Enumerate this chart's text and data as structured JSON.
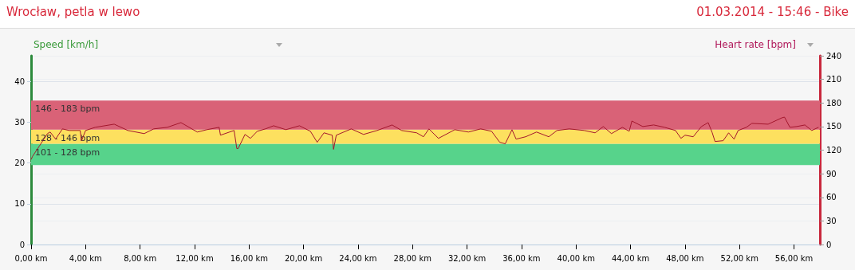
{
  "chart_data": {
    "type": "line",
    "title": "Wrocław, petla w lewo",
    "subtitle": "01.03.2014 - 15:46 - Bike",
    "ylabel": "Speed [km/h]",
    "y2label": "Heart rate [bpm]",
    "xlim": [
      0,
      57.9
    ],
    "xticks": [
      {
        "value": 0,
        "label": "0,00 km"
      },
      {
        "value": 4,
        "label": "4,00 km"
      },
      {
        "value": 8,
        "label": "8,00 km"
      },
      {
        "value": 12,
        "label": "12,00 km"
      },
      {
        "value": 16,
        "label": "16,00 km"
      },
      {
        "value": 20,
        "label": "20,00 km"
      },
      {
        "value": 24,
        "label": "24,00 km"
      },
      {
        "value": 28,
        "label": "28,00 km"
      },
      {
        "value": 32,
        "label": "32,00 km"
      },
      {
        "value": 36,
        "label": "36,00 km"
      },
      {
        "value": 40,
        "label": "40,00 km"
      },
      {
        "value": 44,
        "label": "44,00 km"
      },
      {
        "value": 48,
        "label": "48,00 km"
      },
      {
        "value": 52,
        "label": "52,00 km"
      },
      {
        "value": 56,
        "label": "56,00 km"
      }
    ],
    "ylim": [
      0,
      46.3
    ],
    "yticks": [
      0,
      10,
      20,
      30,
      40
    ],
    "y2lim": [
      0,
      240
    ],
    "y2ticks": [
      0,
      30,
      60,
      90,
      120,
      150,
      180,
      210,
      240
    ],
    "grid": "y",
    "marker": "none",
    "bands": [
      {
        "axis": "y2",
        "from": 101,
        "to": 128,
        "label": "101 - 128 bpm",
        "color": "#57d38b"
      },
      {
        "axis": "y2",
        "from": 128,
        "to": 146,
        "label": "128 - 146 bpm",
        "color": "#fde05f"
      },
      {
        "axis": "y2",
        "from": 146,
        "to": 183,
        "label": "146 - 183 bpm",
        "color": "#d96277"
      }
    ],
    "series": [
      {
        "color": "#a3172d",
        "axis": "y2",
        "x": [
          0,
          0.1,
          0.6,
          1.2,
          1.4,
          1.8,
          2.3,
          2.8,
          3.6,
          3.7,
          4.0,
          4.7,
          6.1,
          7.1,
          8.3,
          9.0,
          10.0,
          11.0,
          12.2,
          12.9,
          13.8,
          13.9,
          14.9,
          15.1,
          15.2,
          15.7,
          16.1,
          16.6,
          17.2,
          17.8,
          18.7,
          19.7,
          20.5,
          21.0,
          21.5,
          22.1,
          22.2,
          22.4,
          23.5,
          24.4,
          25.4,
          26.5,
          27.2,
          28.3,
          28.8,
          29.2,
          29.9,
          31.1,
          32.1,
          33.0,
          33.8,
          34.4,
          34.8,
          35.3,
          35.6,
          36.3,
          37.1,
          38.0,
          38.6,
          39.5,
          40.6,
          41.4,
          42.0,
          42.6,
          43.4,
          43.9,
          44.1,
          44.9,
          45.7,
          46.5,
          47.3,
          47.7,
          48.0,
          48.6,
          49.2,
          49.7,
          50.0,
          50.2,
          50.8,
          51.2,
          51.6,
          51.9,
          52.5,
          52.9,
          54.1,
          55.1,
          55.3,
          55.7,
          56.2,
          56.8,
          57.3,
          57.8
        ],
        "values": [
          108,
          112,
          125,
          141,
          143,
          134,
          147,
          145,
          145,
          132,
          145,
          149,
          153,
          145,
          141,
          147,
          149,
          155,
          143,
          146,
          149,
          139,
          145,
          122,
          122,
          140,
          135,
          144,
          147,
          151,
          146,
          151,
          144,
          130,
          142,
          139,
          121,
          139,
          147,
          140,
          145,
          152,
          145,
          142,
          137,
          147,
          135,
          146,
          143,
          147,
          144,
          130,
          128,
          146,
          134,
          137,
          143,
          137,
          145,
          147,
          145,
          142,
          150,
          141,
          149,
          144,
          157,
          150,
          152,
          149,
          145,
          135,
          139,
          137,
          150,
          155,
          142,
          131,
          132,
          142,
          134,
          145,
          149,
          154,
          153,
          161,
          162,
          149,
          150,
          152,
          145,
          149
        ]
      }
    ]
  }
}
